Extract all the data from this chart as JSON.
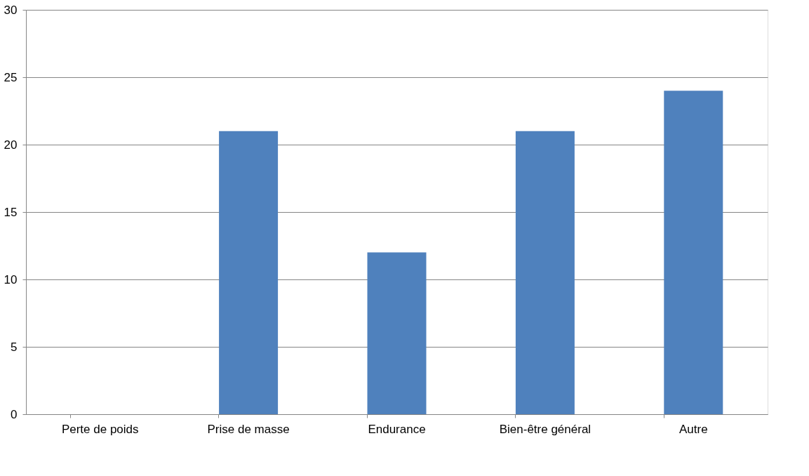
{
  "chart_data": {
    "type": "bar",
    "categories": [
      "Perte de poids",
      "Prise de masse",
      "Endurance",
      "Bien-être général",
      "Autre"
    ],
    "values": [
      0,
      21,
      12,
      21,
      24
    ],
    "color": "#4f81bd",
    "ylim": [
      0,
      30
    ],
    "yticks": [
      0,
      5,
      10,
      15,
      20,
      25,
      30
    ],
    "grid": "y"
  }
}
